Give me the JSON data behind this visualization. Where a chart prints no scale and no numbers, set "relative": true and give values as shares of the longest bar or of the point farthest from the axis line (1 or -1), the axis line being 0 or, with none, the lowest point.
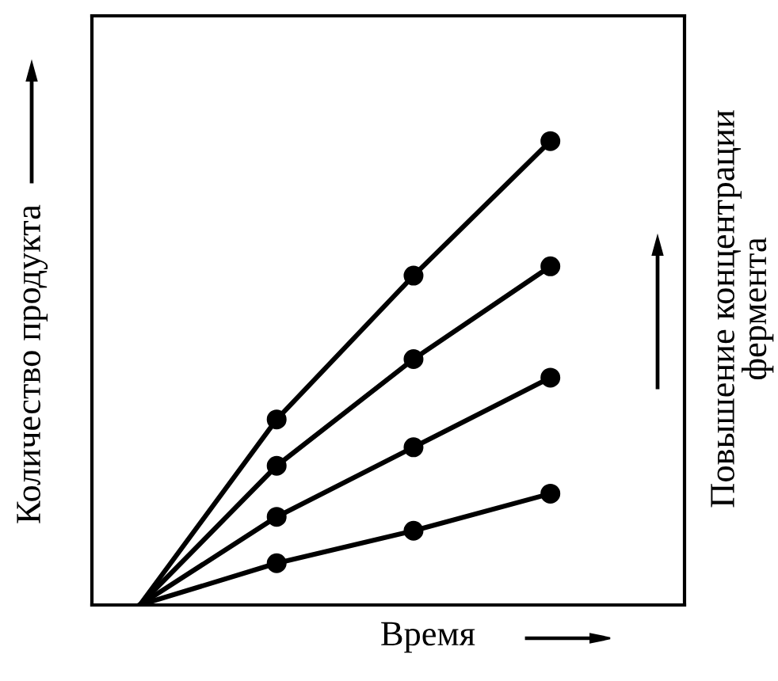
{
  "chart_data": {
    "type": "line",
    "relative": true,
    "xlabel": "Время",
    "ylabel": "Количество продукта",
    "annotations": [
      "Повышение концентрации\nфермента"
    ],
    "categories": [
      null,
      null,
      null,
      null
    ],
    "marker": "circle",
    "line_style": "solid",
    "series": [
      {
        "color": "#000000",
        "values": [
          0,
          0.4,
          0.71,
          1.0
        ]
      },
      {
        "color": "#000000",
        "values": [
          0,
          0.3,
          0.53,
          0.73
        ]
      },
      {
        "color": "#000000",
        "values": [
          0,
          0.19,
          0.34,
          0.49
        ]
      },
      {
        "color": "#000000",
        "values": [
          0,
          0.09,
          0.16,
          0.24
        ]
      }
    ]
  }
}
